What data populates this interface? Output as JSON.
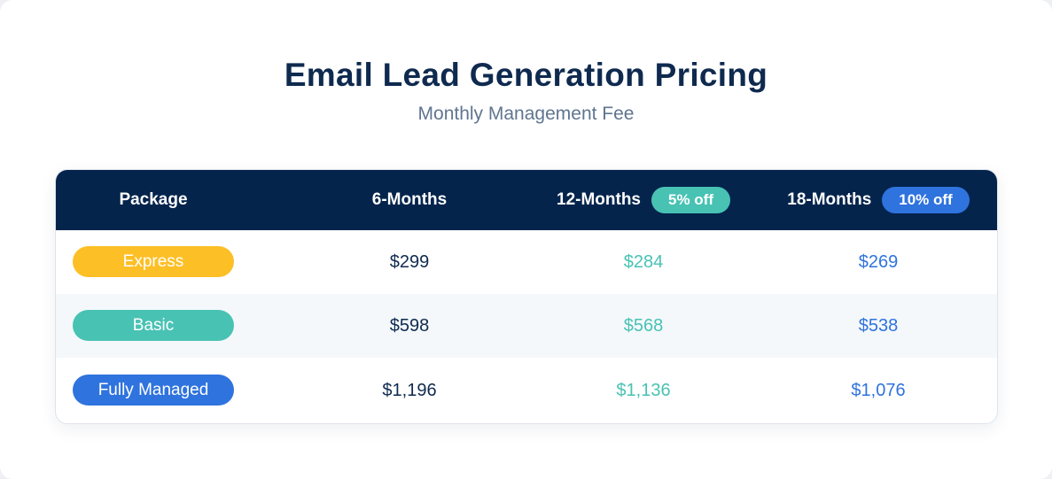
{
  "header": {
    "title": "Email Lead Generation Pricing",
    "subtitle": "Monthly Management Fee"
  },
  "table": {
    "columns": [
      {
        "label": "Package"
      },
      {
        "label": "6-Months"
      },
      {
        "label": "12-Months",
        "badge": "5% off",
        "badge_color": "#48c2b3"
      },
      {
        "label": "18-Months",
        "badge": "10% off",
        "badge_color": "#2f73de"
      }
    ],
    "rows": [
      {
        "package": "Express",
        "package_color": "#fdbf26",
        "m6": "$299",
        "m12": "$284",
        "m18": "$269"
      },
      {
        "package": "Basic",
        "package_color": "#48c2b3",
        "m6": "$598",
        "m12": "$568",
        "m18": "$538"
      },
      {
        "package": "Fully Managed",
        "package_color": "#2f73de",
        "m6": "$1,196",
        "m12": "$1,136",
        "m18": "$1,076"
      }
    ]
  },
  "colors": {
    "header_background": "#04244c",
    "title_text": "#0f2a4f",
    "subtitle_text": "#5f7590",
    "price_6_months": "#0f2a4f",
    "price_12_months": "#48c2b3",
    "price_18_months": "#2f73de",
    "alt_row_background": "#f4f8fb"
  }
}
